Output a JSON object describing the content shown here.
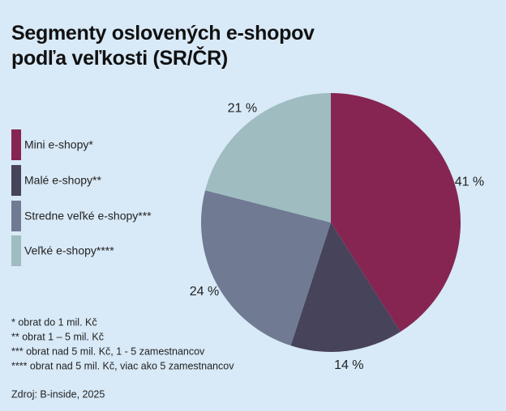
{
  "chart_data": {
    "type": "pie",
    "title": "Segmenty oslovených e-shopov podľa veľkosti (SR/ČR)",
    "categories": [
      "Mini e-shopy*",
      "Malé e-shopy**",
      "Stredne veľké e-shopy***",
      "Veľké e-shopy****"
    ],
    "values": [
      41,
      14,
      24,
      21
    ],
    "value_labels": [
      "41 %",
      "14 %",
      "24 %",
      "21 %"
    ],
    "colors": [
      "#862552",
      "#47435a",
      "#707a93",
      "#9fbcc1"
    ],
    "legend": "left",
    "notes": [
      "* obrat do 1 mil. Kč",
      "** obrat 1 – 5 mil. Kč",
      "*** obrat nad 5 mil. Kč, 1 - 5 zamestnancov",
      "**** obrat nad 5 mil. Kč, viac ako 5 zamestnancov"
    ],
    "source": "Zdroj: B-inside, 2025"
  }
}
